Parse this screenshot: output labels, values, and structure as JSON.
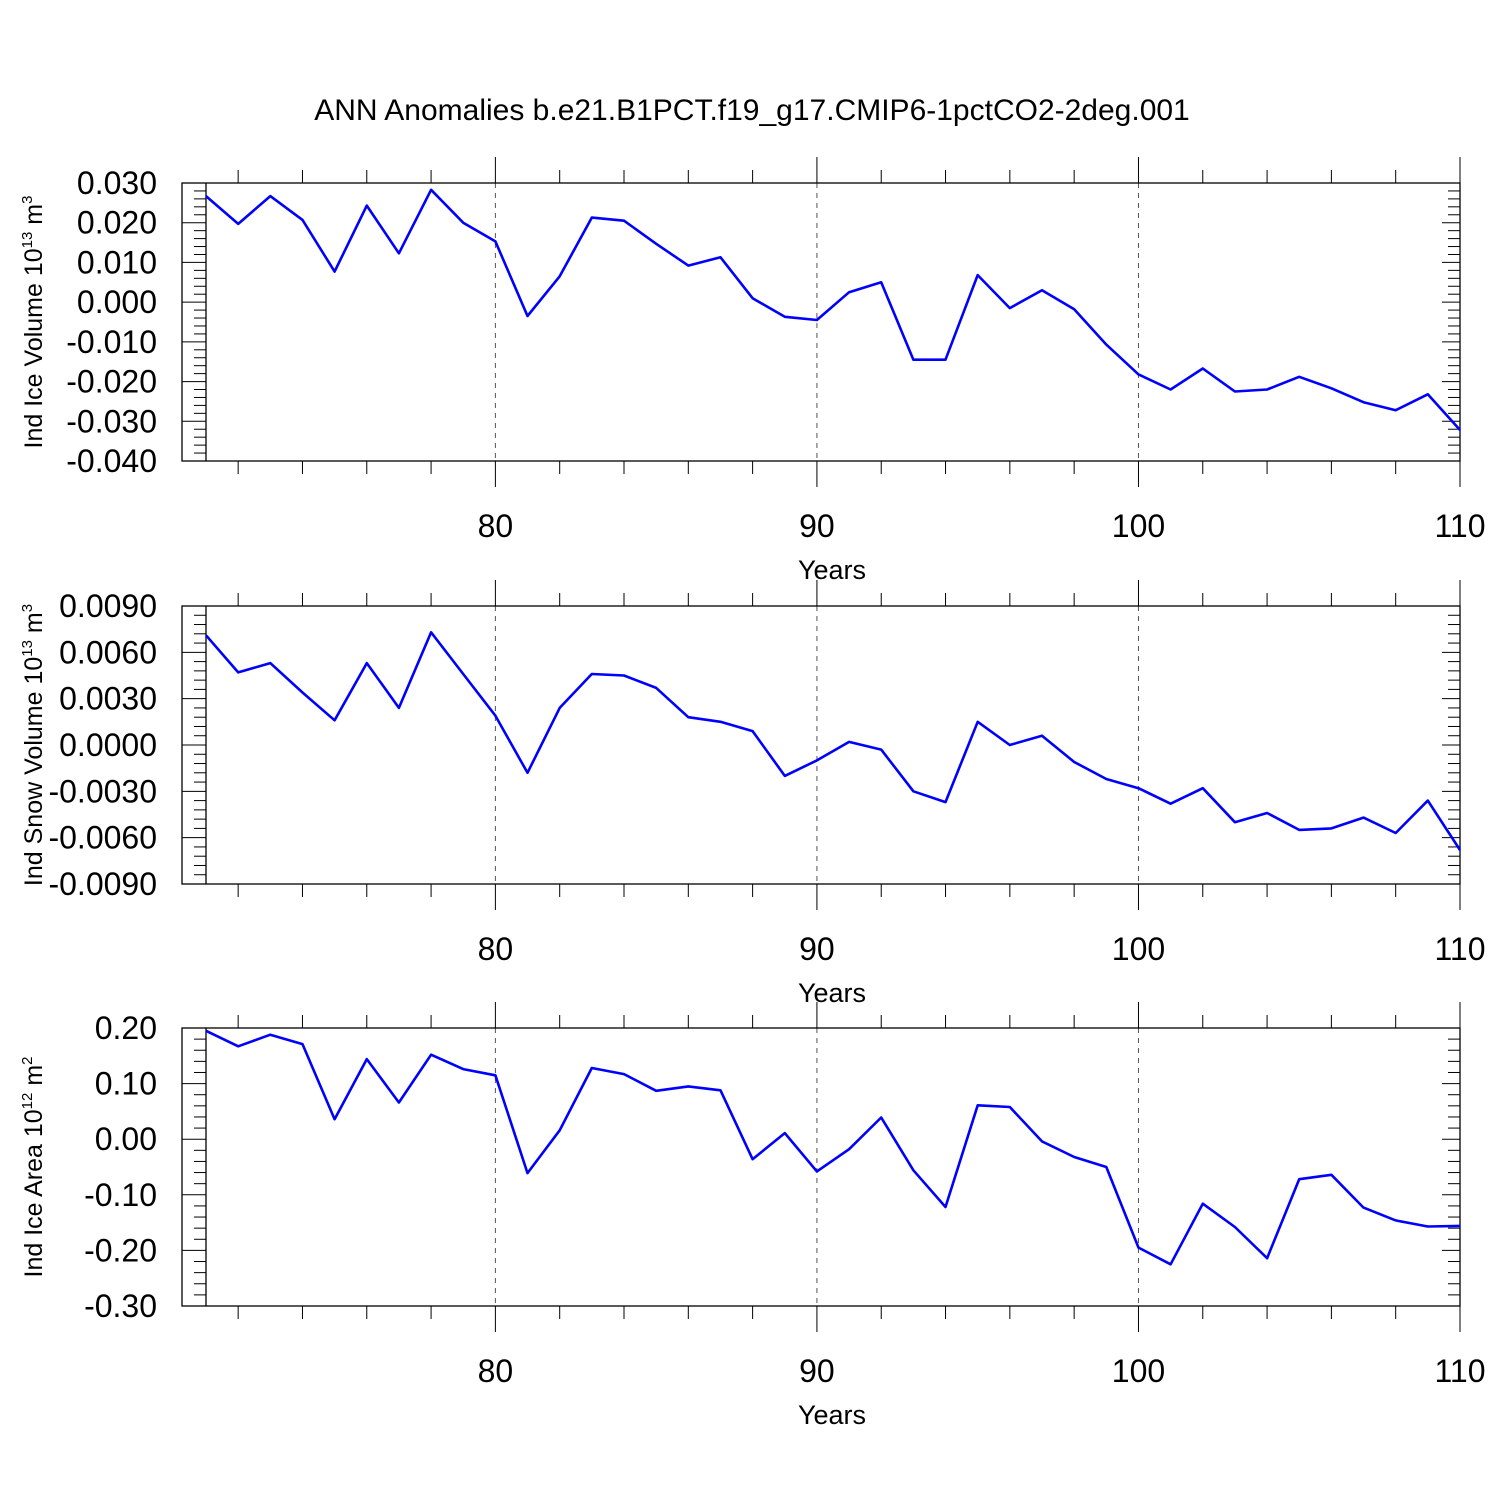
{
  "figure": {
    "title": "ANN Anomalies b.e21.B1PCT.f19_g17.CMIP6-1pctCO2-2deg.001",
    "line_color": "#0000ff"
  },
  "chart_data": [
    {
      "type": "line",
      "title": "",
      "xlabel": "Years",
      "ylabel": {
        "main": "Ind Ice Volume 10",
        "exp": "13",
        "unit": " m",
        "unit_exp": "3"
      },
      "xlim": [
        71,
        110
      ],
      "ylim": [
        -0.04,
        0.03
      ],
      "xticks": [
        80,
        90,
        100,
        110
      ],
      "yticks": [
        -0.04,
        -0.03,
        -0.02,
        -0.01,
        0.0,
        0.01,
        0.02,
        0.03
      ],
      "ytick_labels": [
        "-0.040",
        "-0.030",
        "-0.020",
        "-0.010",
        "0.000",
        "0.010",
        "0.020",
        "0.030"
      ],
      "grid": "vertical dashed at major x ticks",
      "series": [
        {
          "x": [
            71,
            72,
            73,
            74,
            75,
            76,
            77,
            78,
            79,
            80,
            81,
            82,
            83,
            84,
            85,
            86,
            87,
            88,
            89,
            90,
            91,
            92,
            93,
            94,
            95,
            96,
            97,
            98,
            99,
            100,
            101,
            102,
            103,
            104,
            105,
            106,
            107,
            108,
            109,
            110
          ],
          "values": [
            0.0267,
            0.0197,
            0.0267,
            0.0207,
            0.0077,
            0.0243,
            0.0123,
            0.0283,
            0.02,
            0.0153,
            -0.0035,
            0.0065,
            0.0213,
            0.0205,
            0.0147,
            0.0092,
            0.0113,
            0.001,
            -0.0037,
            -0.0045,
            0.0025,
            0.005,
            -0.0145,
            -0.0145,
            0.0068,
            -0.0015,
            0.003,
            -0.0018,
            -0.0107,
            -0.0182,
            -0.022,
            -0.0167,
            -0.0225,
            -0.022,
            -0.0188,
            -0.0217,
            -0.0252,
            -0.0272,
            -0.0232,
            -0.0322
          ]
        }
      ]
    },
    {
      "type": "line",
      "title": "",
      "xlabel": "Years",
      "ylabel": {
        "main": "Ind Snow Volume 10",
        "exp": "13",
        "unit": " m",
        "unit_exp": "3"
      },
      "xlim": [
        71,
        110
      ],
      "ylim": [
        -0.009,
        0.009
      ],
      "xticks": [
        80,
        90,
        100,
        110
      ],
      "yticks": [
        -0.009,
        -0.006,
        -0.003,
        0.0,
        0.003,
        0.006,
        0.009
      ],
      "ytick_labels": [
        "-0.0090",
        "-0.0060",
        "-0.0030",
        "0.0000",
        "0.0030",
        "0.0060",
        "0.0090"
      ],
      "grid": "vertical dashed at major x ticks",
      "series": [
        {
          "x": [
            71,
            72,
            73,
            74,
            75,
            76,
            77,
            78,
            79,
            80,
            81,
            82,
            83,
            84,
            85,
            86,
            87,
            88,
            89,
            90,
            91,
            92,
            93,
            94,
            95,
            96,
            97,
            98,
            99,
            100,
            101,
            102,
            103,
            104,
            105,
            106,
            107,
            108,
            109,
            110
          ],
          "values": [
            0.0071,
            0.0047,
            0.0053,
            0.0034,
            0.0016,
            0.0053,
            0.0024,
            0.0073,
            0.0046,
            0.0019,
            -0.0018,
            0.0024,
            0.0046,
            0.0045,
            0.0037,
            0.0018,
            0.0015,
            0.0009,
            -0.002,
            -0.001,
            0.0002,
            -0.0003,
            -0.003,
            -0.0037,
            0.0015,
            0.0,
            0.0006,
            -0.0011,
            -0.0022,
            -0.0028,
            -0.0038,
            -0.0028,
            -0.005,
            -0.0044,
            -0.0055,
            -0.0054,
            -0.0047,
            -0.0057,
            -0.0036,
            -0.0068
          ]
        }
      ]
    },
    {
      "type": "line",
      "title": "",
      "xlabel": "Years",
      "ylabel": {
        "main": "Ind Ice Area 10",
        "exp": "12",
        "unit": " m",
        "unit_exp": "2"
      },
      "xlim": [
        71,
        110
      ],
      "ylim": [
        -0.3,
        0.2
      ],
      "xticks": [
        80,
        90,
        100,
        110
      ],
      "yticks": [
        -0.3,
        -0.2,
        -0.1,
        0.0,
        0.1,
        0.2
      ],
      "ytick_labels": [
        "-0.30",
        "-0.20",
        "-0.10",
        "0.00",
        "0.10",
        "0.20"
      ],
      "grid": "vertical dashed at major x ticks",
      "series": [
        {
          "x": [
            71,
            72,
            73,
            74,
            75,
            76,
            77,
            78,
            79,
            80,
            81,
            82,
            83,
            84,
            85,
            86,
            87,
            88,
            89,
            90,
            91,
            92,
            93,
            94,
            95,
            96,
            97,
            98,
            99,
            100,
            101,
            102,
            103,
            104,
            105,
            106,
            107,
            108,
            109,
            110
          ],
          "values": [
            0.195,
            0.167,
            0.188,
            0.171,
            0.036,
            0.144,
            0.066,
            0.152,
            0.126,
            0.115,
            -0.061,
            0.016,
            0.128,
            0.117,
            0.087,
            0.095,
            0.088,
            -0.036,
            0.011,
            -0.058,
            -0.018,
            0.039,
            -0.056,
            -0.122,
            0.061,
            0.058,
            -0.004,
            -0.032,
            -0.05,
            -0.195,
            -0.225,
            -0.116,
            -0.158,
            -0.214,
            -0.072,
            -0.064,
            -0.123,
            -0.146,
            -0.157,
            -0.156
          ]
        }
      ]
    }
  ]
}
